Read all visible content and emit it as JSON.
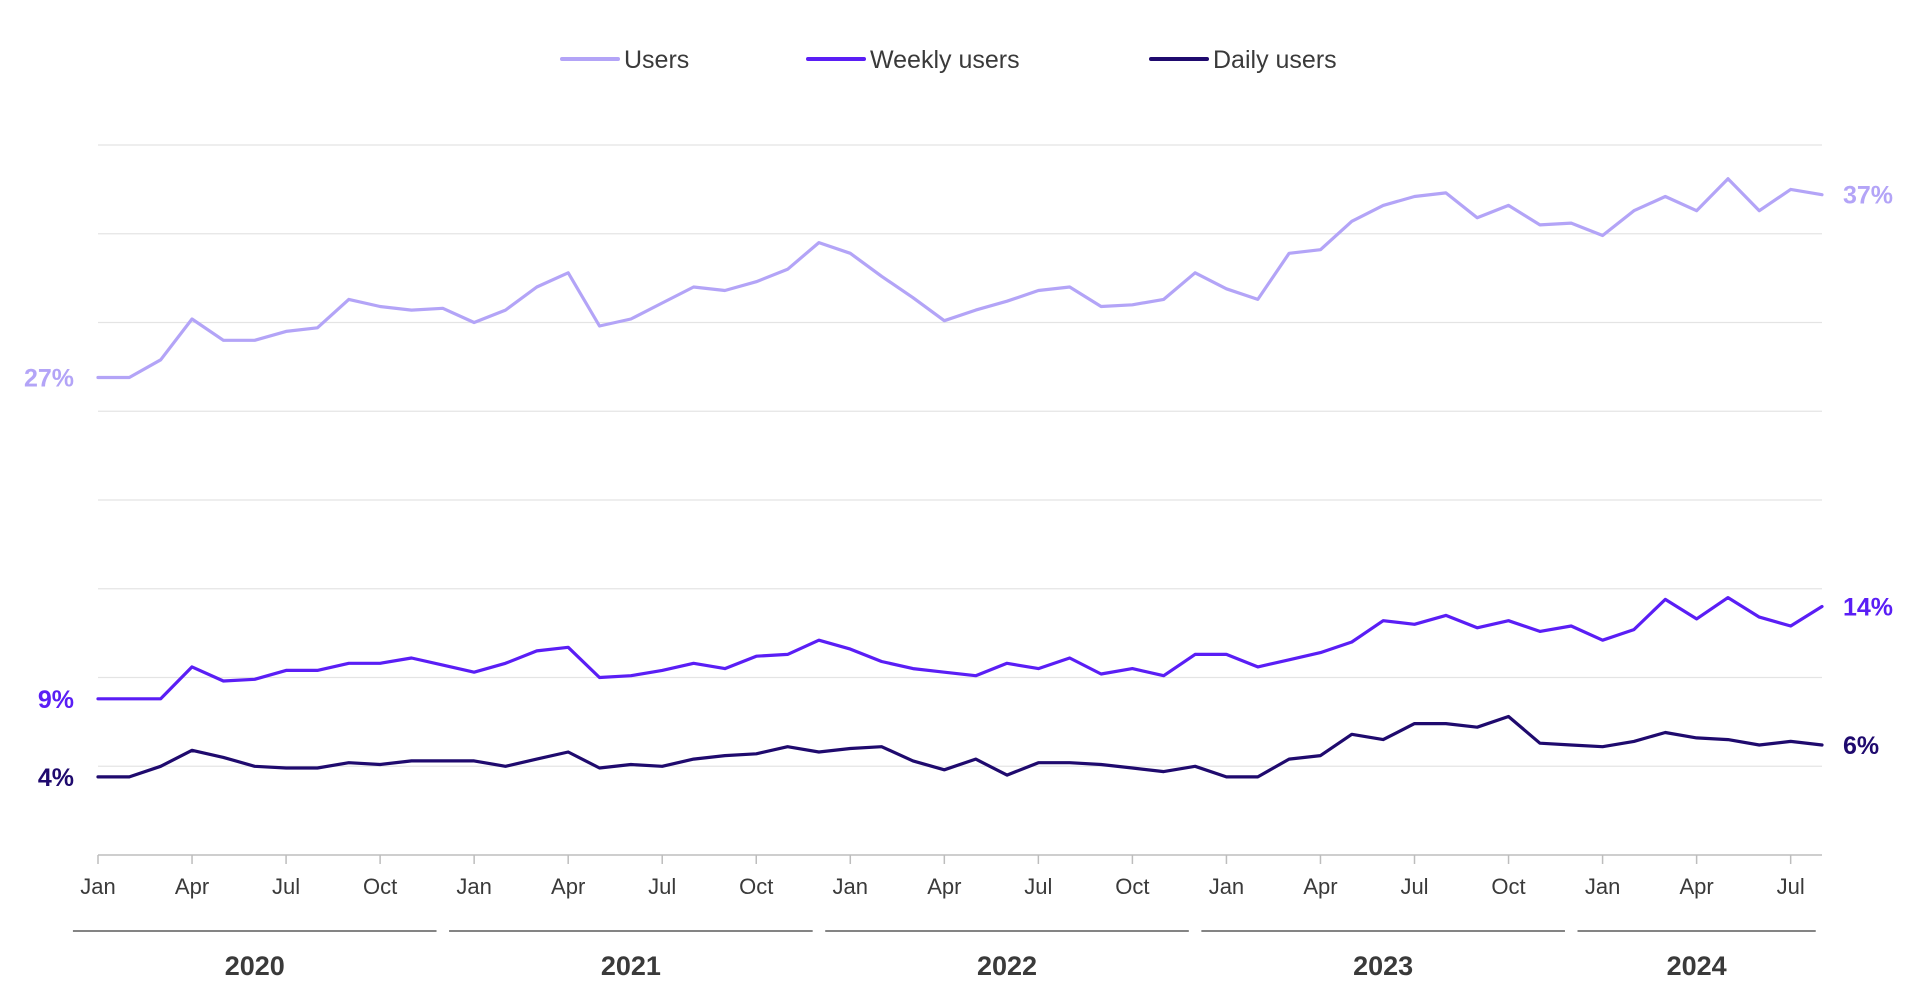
{
  "chart_data": {
    "type": "line",
    "legend": {
      "placement": "top-center",
      "entries": [
        "Users",
        "Weekly users",
        "Daily users"
      ]
    },
    "x_tick_labels": [
      "Jan",
      "Apr",
      "Jul",
      "Oct",
      "Jan",
      "Apr",
      "Jul",
      "Oct",
      "Jan",
      "Apr",
      "Jul",
      "Oct",
      "Jan",
      "Apr",
      "Jul",
      "Oct",
      "Jan",
      "Apr",
      "Jul"
    ],
    "x_tick_months": [
      0,
      3,
      6,
      9,
      12,
      15,
      18,
      21,
      24,
      27,
      30,
      33,
      36,
      39,
      42,
      45,
      48,
      51,
      54
    ],
    "years": [
      {
        "label": "2020",
        "start_month": 0,
        "end_month": 11
      },
      {
        "label": "2021",
        "start_month": 12,
        "end_month": 23
      },
      {
        "label": "2022",
        "start_month": 24,
        "end_month": 35
      },
      {
        "label": "2023",
        "start_month": 36,
        "end_month": 47
      },
      {
        "label": "2024",
        "start_month": 48,
        "end_month": 55
      }
    ],
    "x_range": [
      0,
      55
    ],
    "ylim": [
      0,
      40
    ],
    "gridlines": [
      5,
      10,
      15,
      20,
      25,
      30,
      35,
      40
    ],
    "grid": true,
    "series": [
      {
        "name": "Users",
        "color": "#b3a4f7",
        "start_label": "27%",
        "end_label": "37%",
        "values": [
          26.9,
          26.9,
          27.9,
          30.2,
          29.0,
          29.0,
          29.5,
          29.7,
          31.3,
          30.9,
          30.7,
          30.8,
          30.0,
          30.7,
          32.0,
          32.8,
          29.8,
          30.2,
          31.1,
          32.0,
          31.8,
          32.3,
          33.0,
          34.5,
          33.9,
          32.6,
          31.4,
          30.1,
          30.7,
          31.2,
          31.8,
          32.0,
          30.9,
          31.0,
          31.3,
          32.8,
          31.9,
          31.3,
          33.9,
          34.1,
          35.7,
          36.6,
          37.1,
          37.3,
          35.9,
          36.6,
          35.5,
          35.6,
          34.9,
          36.3,
          37.1,
          36.3,
          38.1,
          36.3,
          37.5,
          37.2
        ]
      },
      {
        "name": "Weekly users",
        "color": "#5a1ef5",
        "start_label": "9%",
        "end_label": "14%",
        "values": [
          8.8,
          8.8,
          8.8,
          10.6,
          9.8,
          9.9,
          10.4,
          10.4,
          10.8,
          10.8,
          11.1,
          10.7,
          10.3,
          10.8,
          11.5,
          11.7,
          10.0,
          10.1,
          10.4,
          10.8,
          10.5,
          11.2,
          11.3,
          12.1,
          11.6,
          10.9,
          10.5,
          10.3,
          10.1,
          10.8,
          10.5,
          11.1,
          10.2,
          10.5,
          10.1,
          11.3,
          11.3,
          10.6,
          11.0,
          11.4,
          12.0,
          13.2,
          13.0,
          13.5,
          12.8,
          13.2,
          12.6,
          12.9,
          12.1,
          12.7,
          14.4,
          13.3,
          14.5,
          13.4,
          12.9,
          14.0
        ]
      },
      {
        "name": "Daily users",
        "color": "#1f0a6e",
        "start_label": "4%",
        "end_label": "6%",
        "values": [
          4.4,
          4.4,
          5.0,
          5.9,
          5.5,
          5.0,
          4.9,
          4.9,
          5.2,
          5.1,
          5.3,
          5.3,
          5.3,
          5.0,
          5.4,
          5.8,
          4.9,
          5.1,
          5.0,
          5.4,
          5.6,
          5.7,
          6.1,
          5.8,
          6.0,
          6.1,
          5.3,
          4.8,
          5.4,
          4.5,
          5.2,
          5.2,
          5.1,
          4.9,
          4.7,
          5.0,
          4.4,
          4.4,
          5.4,
          5.6,
          6.8,
          6.5,
          7.4,
          7.4,
          7.2,
          7.8,
          6.3,
          6.2,
          6.1,
          6.4,
          6.9,
          6.6,
          6.5,
          6.2,
          6.4,
          6.2
        ]
      }
    ]
  }
}
